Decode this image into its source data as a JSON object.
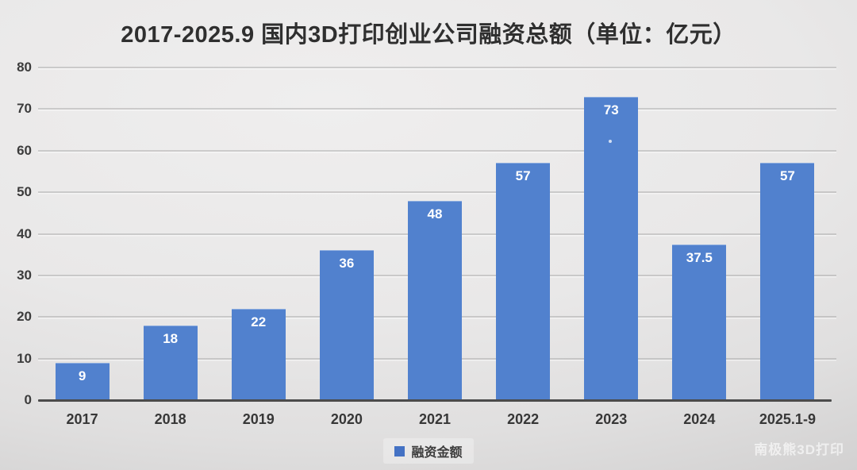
{
  "watermark": "南极熊3D打印",
  "colors": {
    "bar": "#5181CE",
    "bar_label": "#FFFFFF",
    "legend_swatch": "#4472C4",
    "axis": "#4B4B4B",
    "text": "#3C3C3C"
  },
  "chart_data": {
    "type": "bar",
    "title": "2017-2025.9 国内3D打印创业公司融资总额（单位：亿元）",
    "categories": [
      "2017",
      "2018",
      "2019",
      "2020",
      "2021",
      "2022",
      "2023",
      "2024",
      "2025.1-9"
    ],
    "series": [
      {
        "name": "融资金额",
        "values": [
          9,
          18,
          22,
          36,
          48,
          57,
          73,
          37.5,
          57
        ]
      }
    ],
    "xlabel": "",
    "ylabel": "",
    "ylim": [
      0,
      80
    ],
    "yticks": [
      0,
      10,
      20,
      30,
      40,
      50,
      60,
      70,
      80
    ],
    "grid": true,
    "legend_position": "bottom"
  }
}
